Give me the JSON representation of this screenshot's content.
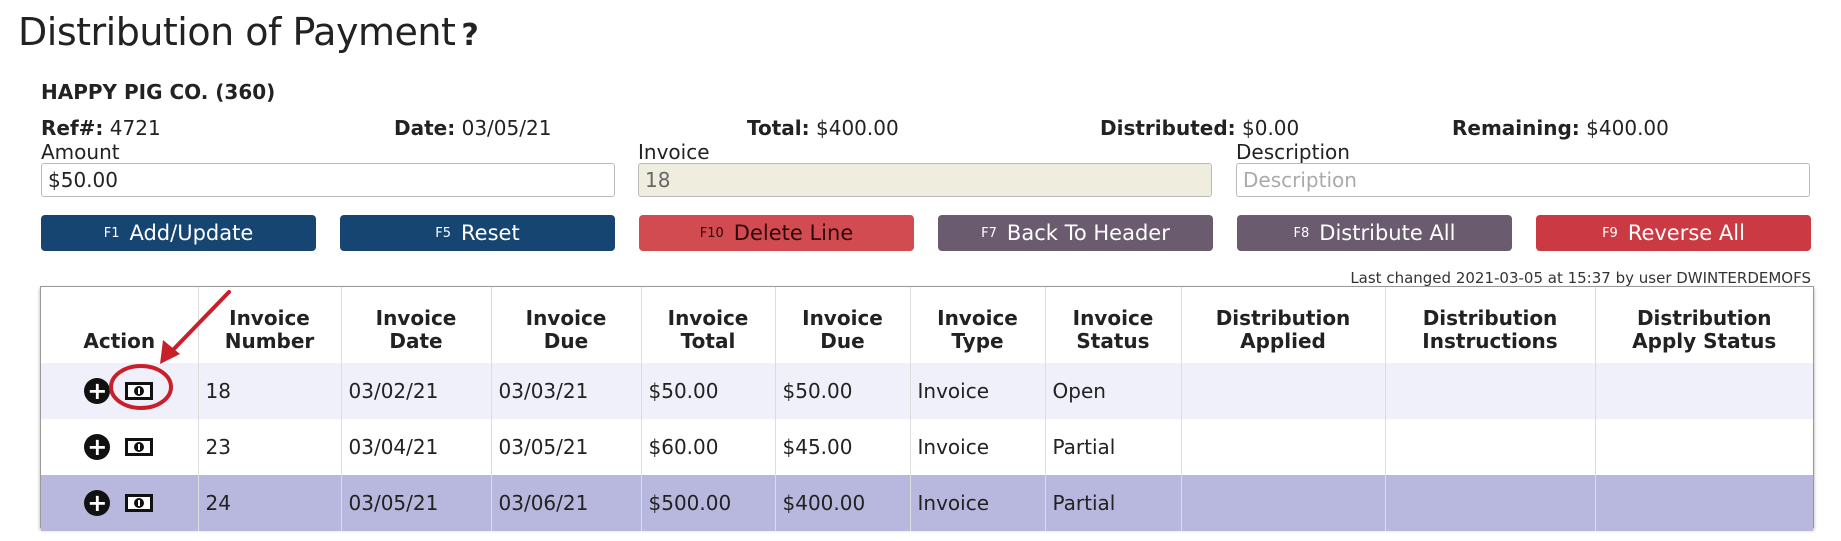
{
  "page": {
    "title": "Distribution of Payment",
    "help_mark": "?"
  },
  "customer": {
    "name": "HAPPY PIG CO. (360)"
  },
  "summary": {
    "ref_label": "Ref#:",
    "ref_value": "4721",
    "date_label": "Date:",
    "date_value": "03/05/21",
    "total_label": "Total:",
    "total_value": "$400.00",
    "distributed_label": "Distributed:",
    "distributed_value": "$0.00",
    "remaining_label": "Remaining:",
    "remaining_value": "$400.00"
  },
  "form": {
    "amount_label": "Amount",
    "amount_value": "$50.00",
    "invoice_label": "Invoice",
    "invoice_value": "18",
    "description_label": "Description",
    "description_placeholder": "Description"
  },
  "buttons": {
    "add": {
      "key": "F1",
      "label": "Add/Update"
    },
    "reset": {
      "key": "F5",
      "label": "Reset"
    },
    "delete": {
      "key": "F10",
      "label": "Delete Line"
    },
    "back": {
      "key": "F7",
      "label": "Back To Header"
    },
    "distribute": {
      "key": "F8",
      "label": "Distribute All"
    },
    "reverse": {
      "key": "F9",
      "label": "Reverse All"
    }
  },
  "last_changed": "Last changed 2021-03-05 at 15:37 by user DWINTERDEMOFS",
  "table": {
    "headers": [
      [
        "Action"
      ],
      [
        "Invoice",
        "Number"
      ],
      [
        "Invoice",
        "Date"
      ],
      [
        "Invoice",
        "Due"
      ],
      [
        "Invoice",
        "Total"
      ],
      [
        "Invoice",
        "Due"
      ],
      [
        "Invoice",
        "Type"
      ],
      [
        "Invoice",
        "Status"
      ],
      [
        "Distribution",
        "Applied"
      ],
      [
        "Distribution",
        "Instructions"
      ],
      [
        "Distribution",
        "Apply Status"
      ]
    ],
    "rows": [
      {
        "number": "18",
        "date": "03/02/21",
        "due_date": "03/03/21",
        "total": "$50.00",
        "due": "$50.00",
        "type": "Invoice",
        "status": "Open",
        "applied": "",
        "instructions": "",
        "apply_status": ""
      },
      {
        "number": "23",
        "date": "03/04/21",
        "due_date": "03/05/21",
        "total": "$60.00",
        "due": "$45.00",
        "type": "Invoice",
        "status": "Partial",
        "applied": "",
        "instructions": "",
        "apply_status": ""
      },
      {
        "number": "24",
        "date": "03/05/21",
        "due_date": "03/06/21",
        "total": "$500.00",
        "due": "$400.00",
        "type": "Invoice",
        "status": "Partial",
        "applied": "",
        "instructions": "",
        "apply_status": ""
      }
    ]
  },
  "icons": {
    "add_row": "plus-circle-icon",
    "distribute_row": "money-bill-icon"
  },
  "colors": {
    "primary": "#174572",
    "danger": "#d14b50",
    "muted": "#6b5b6f",
    "reverse": "#cb3a42",
    "highlight_row": "#b8b8de",
    "annotation": "#c8202a"
  }
}
